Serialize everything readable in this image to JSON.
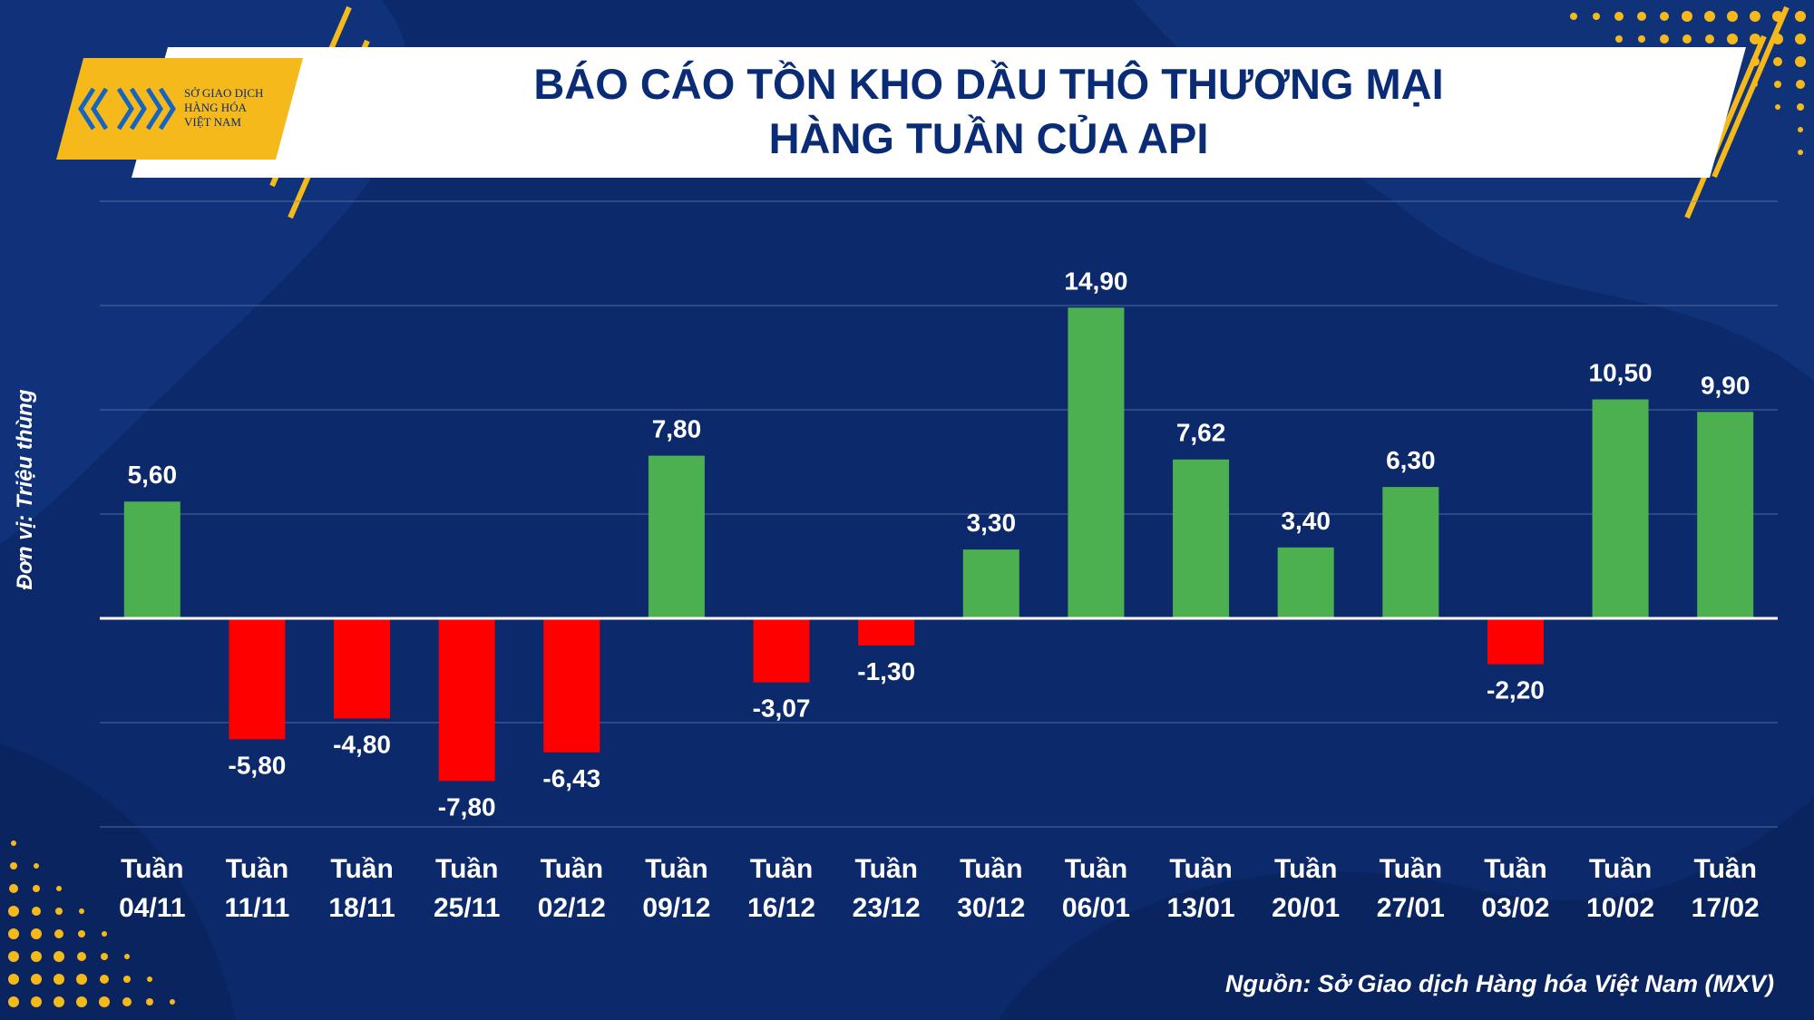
{
  "title": {
    "line1": "BÁO CÁO TỒN KHO DẦU THÔ THƯƠNG MẠI",
    "line2": "HÀNG TUẦN CỦA API"
  },
  "logo": {
    "line1": "SỞ GIAO DỊCH",
    "line2": "HÀNG HÓA",
    "line3": "VIỆT NAM"
  },
  "source": "Nguồn: Sở Giao dịch Hàng hóa Việt Nam (MXV)",
  "colors": {
    "background": "#0c2a6b",
    "positive": "#4caf50",
    "negative": "#ff0000",
    "title": "#0a2b75",
    "accent": "#f5b91b"
  },
  "chart_data": {
    "type": "bar",
    "categories": [
      "Tuần 04/11",
      "Tuần 11/11",
      "Tuần 18/11",
      "Tuần 25/11",
      "Tuần 02/12",
      "Tuần 09/12",
      "Tuần 16/12",
      "Tuần 23/12",
      "Tuần 30/12",
      "Tuần 06/01",
      "Tuần 13/01",
      "Tuần 20/01",
      "Tuần 27/01",
      "Tuần 03/02",
      "Tuần 10/02",
      "Tuần 17/02"
    ],
    "category_lines": [
      [
        "Tuần",
        "04/11"
      ],
      [
        "Tuần",
        "11/11"
      ],
      [
        "Tuần",
        "18/11"
      ],
      [
        "Tuần",
        "25/11"
      ],
      [
        "Tuần",
        "02/12"
      ],
      [
        "Tuần",
        "09/12"
      ],
      [
        "Tuần",
        "16/12"
      ],
      [
        "Tuần",
        "23/12"
      ],
      [
        "Tuần",
        "30/12"
      ],
      [
        "Tuần",
        "06/01"
      ],
      [
        "Tuần",
        "13/01"
      ],
      [
        "Tuần",
        "20/01"
      ],
      [
        "Tuần",
        "27/01"
      ],
      [
        "Tuần",
        "03/02"
      ],
      [
        "Tuần",
        "10/02"
      ],
      [
        "Tuần",
        "17/02"
      ]
    ],
    "values": [
      5.6,
      -5.8,
      -4.8,
      -7.8,
      -6.43,
      7.8,
      -3.07,
      -1.3,
      3.3,
      14.9,
      7.62,
      3.4,
      6.3,
      -2.2,
      10.5,
      9.9
    ],
    "data_labels": [
      "5,60",
      "-5,80",
      "-4,80",
      "-7,80",
      "-6,43",
      "7,80",
      "-3,07",
      "-1,30",
      "3,30",
      "14,90",
      "7,62",
      "3,40",
      "6,30",
      "-2,20",
      "10,50",
      "9,90"
    ],
    "title": "BÁO CÁO TỒN KHO DẦU THÔ THƯƠNG MẠI HÀNG TUẦN CỦA API",
    "xlabel": "",
    "ylabel": "Đơn vị: Triệu thùng",
    "ylim": [
      -10,
      20
    ],
    "y_gridlines": [
      -10,
      -5,
      0,
      5,
      10,
      15,
      20
    ],
    "grid": true,
    "legend": "none"
  }
}
